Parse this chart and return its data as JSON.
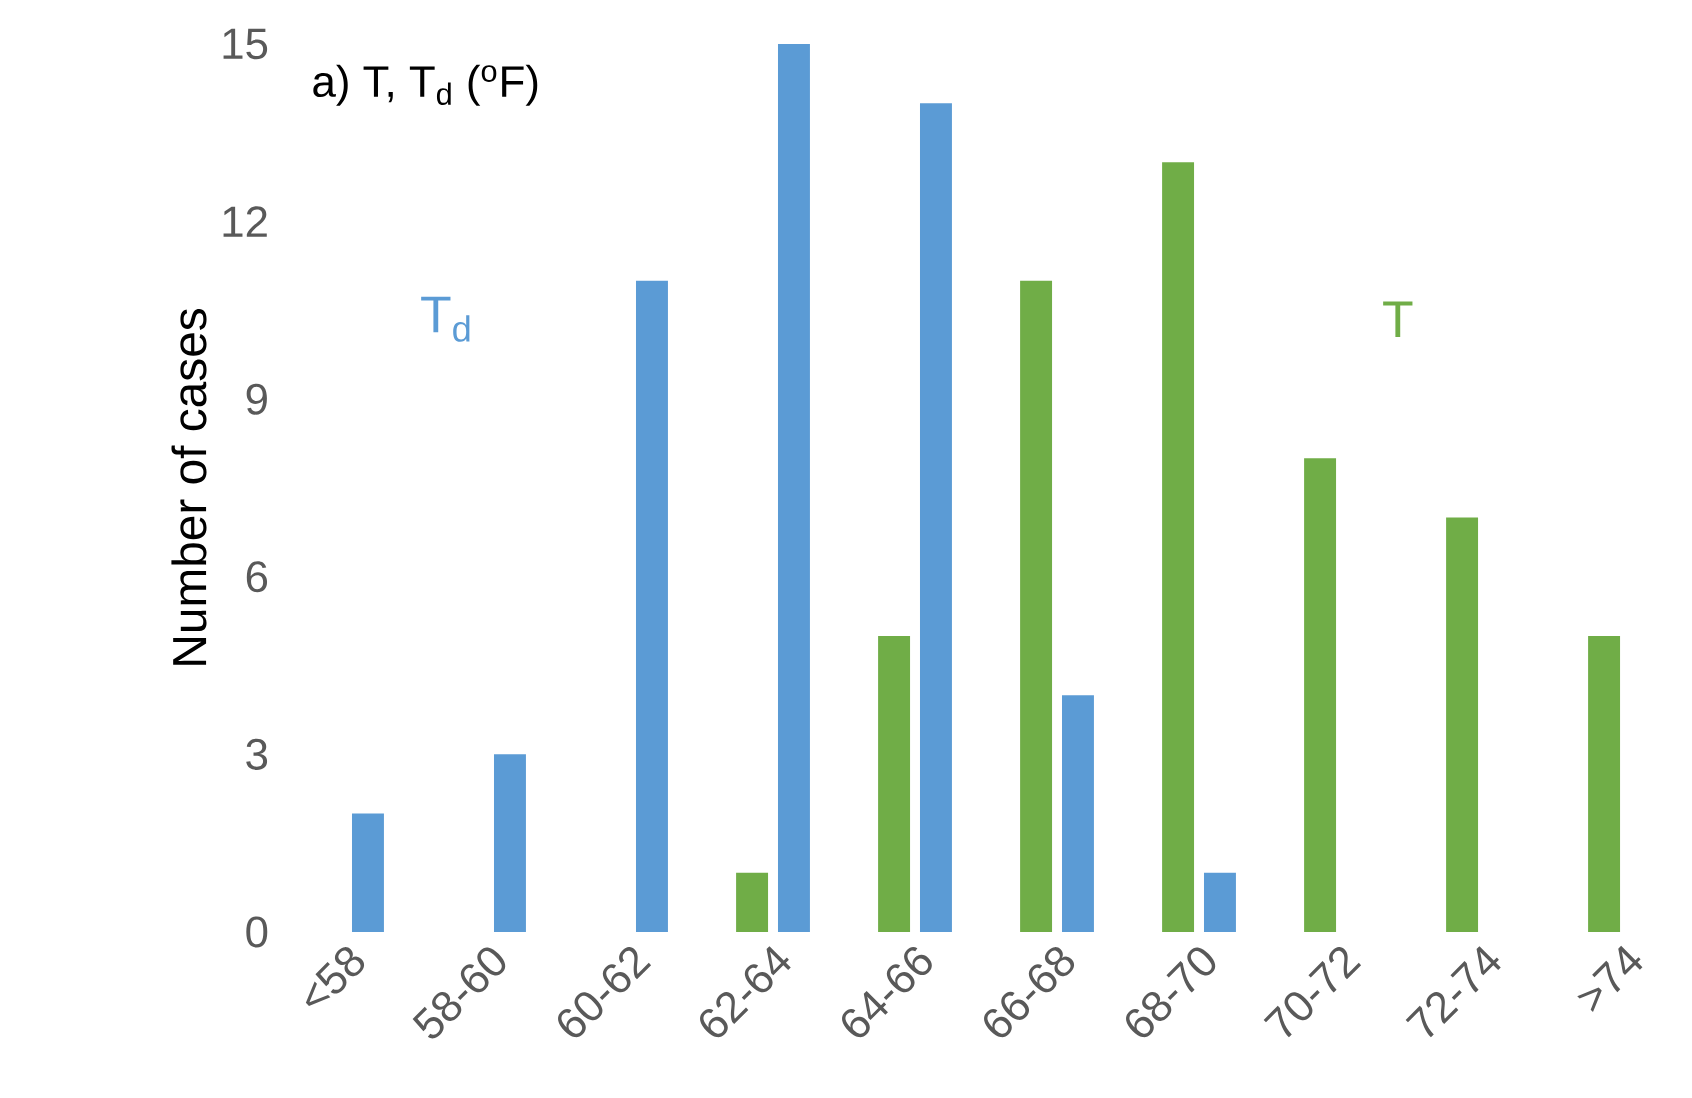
{
  "chart_data": {
    "type": "bar",
    "title": "a) T, T$_{d}$ ($^{o}$F)",
    "ylabel": "Number of cases",
    "categories": [
      "<58",
      "58-60",
      "60-62",
      "62-64",
      "64-66",
      "66-68",
      "68-70",
      "70-72",
      "72-74",
      ">74"
    ],
    "series": [
      {
        "name": "T",
        "color": "#70ad47",
        "values": [
          0,
          0,
          0,
          1,
          5,
          11,
          13,
          8,
          7,
          5
        ]
      },
      {
        "name": "T$_{d}$",
        "color": "#5b9bd5",
        "values": [
          2,
          3,
          11,
          15,
          14,
          4,
          1,
          0,
          0,
          0
        ]
      }
    ],
    "ylim": [
      0,
      15
    ],
    "yticks": [
      0,
      3,
      6,
      9,
      12,
      15
    ],
    "grid": false,
    "legend": false
  }
}
